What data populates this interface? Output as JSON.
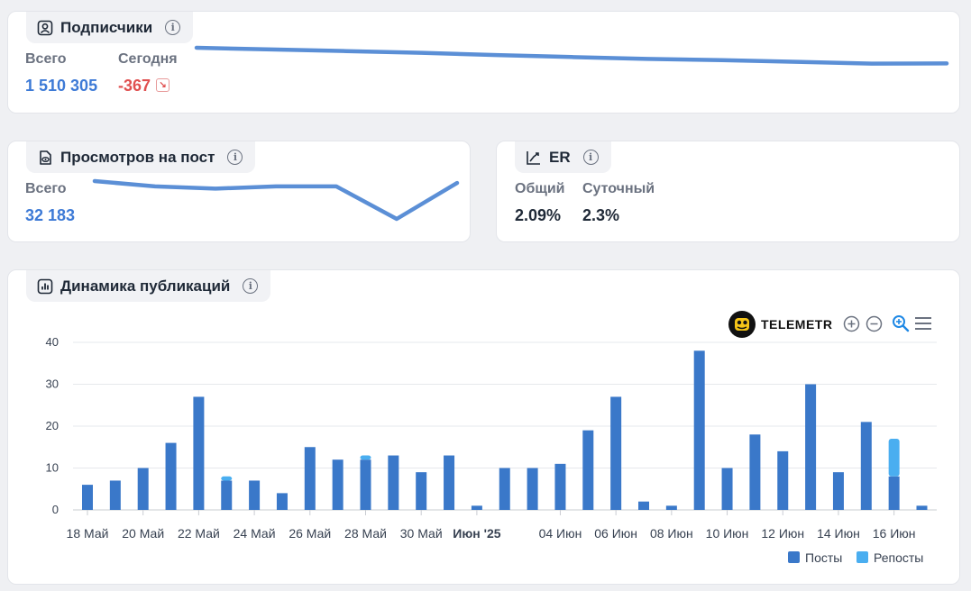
{
  "subscribers": {
    "title": "Подписчики",
    "total_label": "Всего",
    "total_value": "1 510 305",
    "today_label": "Сегодня",
    "today_value": "-367",
    "trend_icon": "arrow-down-right-icon",
    "sparkline": [
      100,
      96.3,
      92.9,
      89.3,
      84.5,
      80.1,
      76.2,
      73.6,
      70.0,
      66.2,
      66.6
    ]
  },
  "views": {
    "title": "Просмотров на пост",
    "total_label": "Всего",
    "total_value": "32 183",
    "sparkline": [
      100,
      86,
      80,
      86,
      86,
      0,
      95
    ]
  },
  "er": {
    "title": "ER",
    "general_label": "Общий",
    "general_value": "2.09%",
    "daily_label": "Суточный",
    "daily_value": "2.3%"
  },
  "publications": {
    "title": "Динамика публикаций",
    "brand": "TELEMETR",
    "toolbar": [
      "zoom-in-icon",
      "zoom-out-icon",
      "zoom-select-icon",
      "menu-icon"
    ],
    "legend": {
      "posts": "Посты",
      "reposts": "Репосты"
    },
    "colors": {
      "posts": "#3a78c9",
      "reposts": "#4aaef0"
    }
  },
  "chart_data": {
    "type": "bar",
    "stacked": true,
    "ylim": [
      0,
      40
    ],
    "yticks": [
      "40",
      "30",
      "20",
      "10",
      "0"
    ],
    "xticks": [
      {
        "index": 0,
        "label": "18 Май",
        "bold": false
      },
      {
        "index": 2,
        "label": "20 Май",
        "bold": false
      },
      {
        "index": 4,
        "label": "22 Май",
        "bold": false
      },
      {
        "index": 6,
        "label": "24 Май",
        "bold": false
      },
      {
        "index": 8,
        "label": "26 Май",
        "bold": false
      },
      {
        "index": 10,
        "label": "28 Май",
        "bold": false
      },
      {
        "index": 12,
        "label": "30 Май",
        "bold": false
      },
      {
        "index": 14,
        "label": "Июн '25",
        "bold": true
      },
      {
        "index": 17,
        "label": "04 Июн",
        "bold": false
      },
      {
        "index": 19,
        "label": "06 Июн",
        "bold": false
      },
      {
        "index": 21,
        "label": "08 Июн",
        "bold": false
      },
      {
        "index": 23,
        "label": "10 Июн",
        "bold": false
      },
      {
        "index": 25,
        "label": "12 Июн",
        "bold": false
      },
      {
        "index": 27,
        "label": "14 Июн",
        "bold": false
      },
      {
        "index": 29,
        "label": "16 Июн",
        "bold": false
      }
    ],
    "series": [
      {
        "name": "Посты",
        "values": [
          6,
          7,
          10,
          16,
          27,
          7,
          7,
          4,
          15,
          12,
          12,
          13,
          9,
          13,
          1,
          10,
          10,
          11,
          19,
          27,
          2,
          1,
          38,
          10,
          18,
          14,
          30,
          9,
          21,
          8,
          1
        ]
      },
      {
        "name": "Репосты",
        "values": [
          0,
          0,
          0,
          0,
          0,
          1,
          0,
          0,
          0,
          0,
          1,
          0,
          0,
          0,
          0,
          0,
          0,
          0,
          0,
          0,
          0,
          0,
          0,
          0,
          0,
          0,
          0,
          0,
          0,
          9,
          0
        ]
      }
    ],
    "legend_position": "bottom-right",
    "grid": true
  }
}
